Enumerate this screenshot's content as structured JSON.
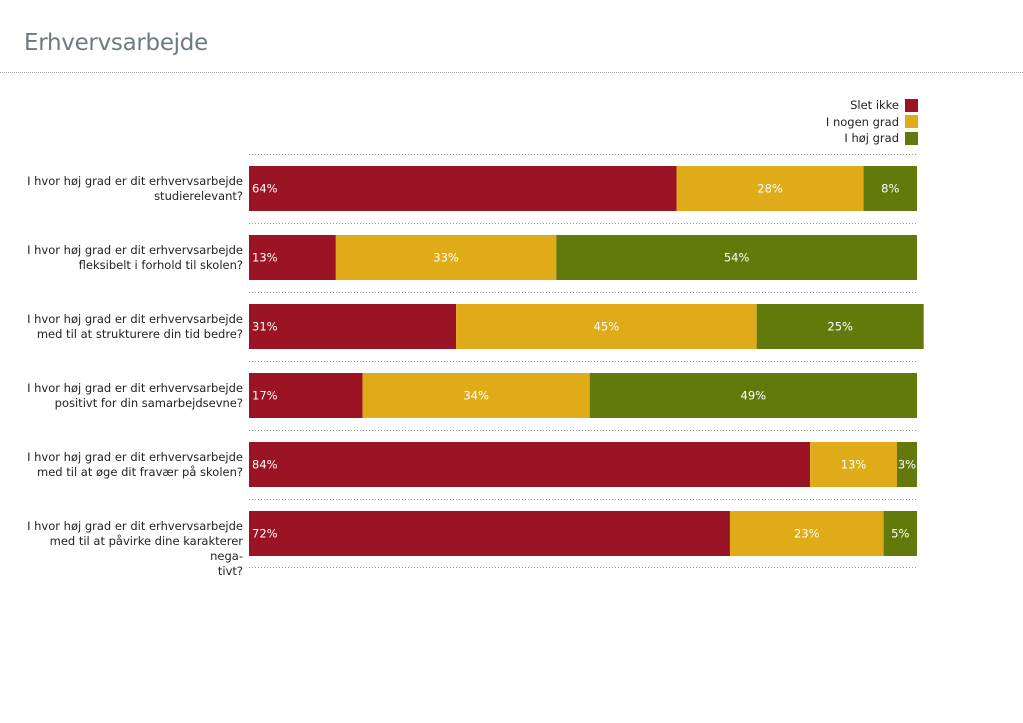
{
  "page": {
    "title": "Erhvervsarbejde"
  },
  "legend": [
    {
      "label": "Slet ikke",
      "color": "#9b1425"
    },
    {
      "label": "I nogen grad",
      "color": "#e0ab18"
    },
    {
      "label": "I høj grad",
      "color": "#627a0b"
    }
  ],
  "chart_data": {
    "type": "bar",
    "orientation": "horizontal",
    "stacked": true,
    "xlim": [
      0,
      100
    ],
    "unit": "%",
    "categories": [
      "I hvor høj grad er dit erhvervsarbejde studierelevant?",
      "I hvor høj grad er dit erhvervsarbejde fleksibelt i forhold til skolen?",
      "I hvor høj grad er dit erhvervsarbejde med til at strukturere din tid bedre?",
      "I hvor høj grad er dit erhvervsarbejde positivt for din samarbejdsevne?",
      "I hvor høj grad er dit erhvervsarbejde med til at øge dit fravær på skolen?",
      "I hvor høj grad er dit erhvervsarbejde med til at påvirke dine karakterer negativt?"
    ],
    "category_lines": [
      [
        "I hvor høj grad er dit erhvervsarbejde",
        "studierelevant?"
      ],
      [
        "I hvor høj grad er dit erhvervsarbejde",
        "fleksibelt i forhold til skolen?"
      ],
      [
        "I hvor høj grad er dit erhvervsarbejde",
        "med til at strukturere din tid bedre?"
      ],
      [
        "I hvor høj grad er dit erhvervsarbejde",
        "positivt for din samarbejdsevne?"
      ],
      [
        "I hvor høj grad er dit erhvervsarbejde",
        "med til at øge dit fravær på skolen?"
      ],
      [
        "I hvor høj grad er dit erhvervsarbejde",
        "med til at påvirke dine karakterer nega-",
        "tivt?"
      ]
    ],
    "series": [
      {
        "name": "Slet ikke",
        "color": "#9b1425",
        "values": [
          64,
          13,
          31,
          17,
          84,
          72
        ]
      },
      {
        "name": "I nogen grad",
        "color": "#e0ab18",
        "values": [
          28,
          33,
          45,
          34,
          13,
          23
        ]
      },
      {
        "name": "I høj grad",
        "color": "#627a0b",
        "values": [
          8,
          54,
          25,
          49,
          3,
          5
        ]
      }
    ],
    "legend_position": "top-right",
    "grid": false
  }
}
